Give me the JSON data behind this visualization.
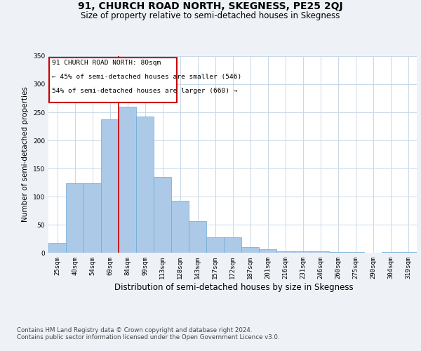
{
  "title": "91, CHURCH ROAD NORTH, SKEGNESS, PE25 2QJ",
  "subtitle": "Size of property relative to semi-detached houses in Skegness",
  "xlabel": "Distribution of semi-detached houses by size in Skegness",
  "ylabel": "Number of semi-detached properties",
  "footnote1": "Contains HM Land Registry data © Crown copyright and database right 2024.",
  "footnote2": "Contains public sector information licensed under the Open Government Licence v3.0.",
  "annotation_line1": "91 CHURCH ROAD NORTH: 80sqm",
  "annotation_line2": "← 45% of semi-detached houses are smaller (546)",
  "annotation_line3": "54% of semi-detached houses are larger (660) →",
  "bar_labels": [
    "25sqm",
    "40sqm",
    "54sqm",
    "69sqm",
    "84sqm",
    "99sqm",
    "113sqm",
    "128sqm",
    "143sqm",
    "157sqm",
    "172sqm",
    "187sqm",
    "201sqm",
    "216sqm",
    "231sqm",
    "246sqm",
    "260sqm",
    "275sqm",
    "290sqm",
    "304sqm",
    "319sqm"
  ],
  "bar_values": [
    18,
    124,
    124,
    238,
    260,
    243,
    135,
    93,
    56,
    27,
    27,
    10,
    6,
    2,
    3,
    3,
    1,
    1,
    0,
    1,
    1
  ],
  "bar_edges": [
    17.5,
    32.5,
    47.5,
    62.5,
    77.5,
    92.5,
    107.5,
    122.5,
    137.5,
    152.5,
    167.5,
    182.5,
    197.5,
    212.5,
    227.5,
    242.5,
    257.5,
    272.5,
    287.5,
    302.5,
    317.5,
    332.5
  ],
  "bar_color": "#adc9e8",
  "bar_edge_color": "#6aaad4",
  "bar_linewidth": 0.5,
  "vline_x": 77.5,
  "vline_color": "#cc0000",
  "vline_linewidth": 1.2,
  "annotation_box_color": "#cc0000",
  "ylim": [
    0,
    350
  ],
  "yticks": [
    0,
    50,
    100,
    150,
    200,
    250,
    300,
    350
  ],
  "grid_color": "#c8d8e8",
  "background_color": "#eef2f7",
  "plot_bg_color": "#ffffff",
  "title_fontsize": 10,
  "subtitle_fontsize": 8.5,
  "xlabel_fontsize": 8.5,
  "ylabel_fontsize": 7.5,
  "tick_fontsize": 6.5,
  "annotation_fontsize": 6.8,
  "footnote_fontsize": 6.2
}
